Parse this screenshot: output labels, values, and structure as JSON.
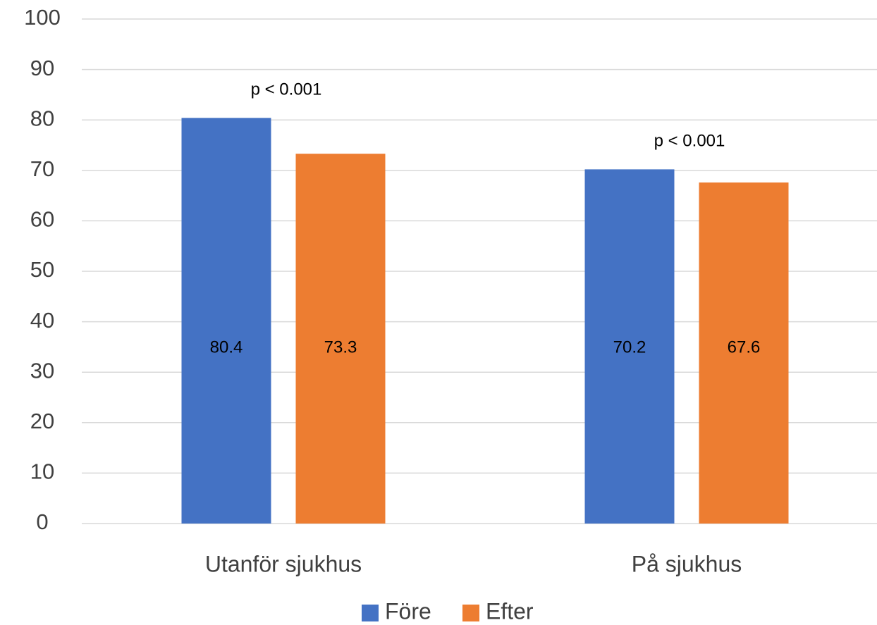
{
  "chart_data": {
    "type": "bar",
    "categories": [
      "Utanför sjukhus",
      "På sjukhus"
    ],
    "series": [
      {
        "name": "Före",
        "color": "#4472c4",
        "values": [
          80.4,
          70.2
        ]
      },
      {
        "name": "Efter",
        "color": "#ed7d31",
        "values": [
          73.3,
          67.6
        ]
      }
    ],
    "annotations": [
      "p < 0.001",
      "p < 0.001"
    ],
    "ylim": [
      0,
      100
    ],
    "yticks": [
      0,
      10,
      20,
      30,
      40,
      50,
      60,
      70,
      80,
      90,
      100
    ],
    "grid": true,
    "legend": "bottom"
  }
}
